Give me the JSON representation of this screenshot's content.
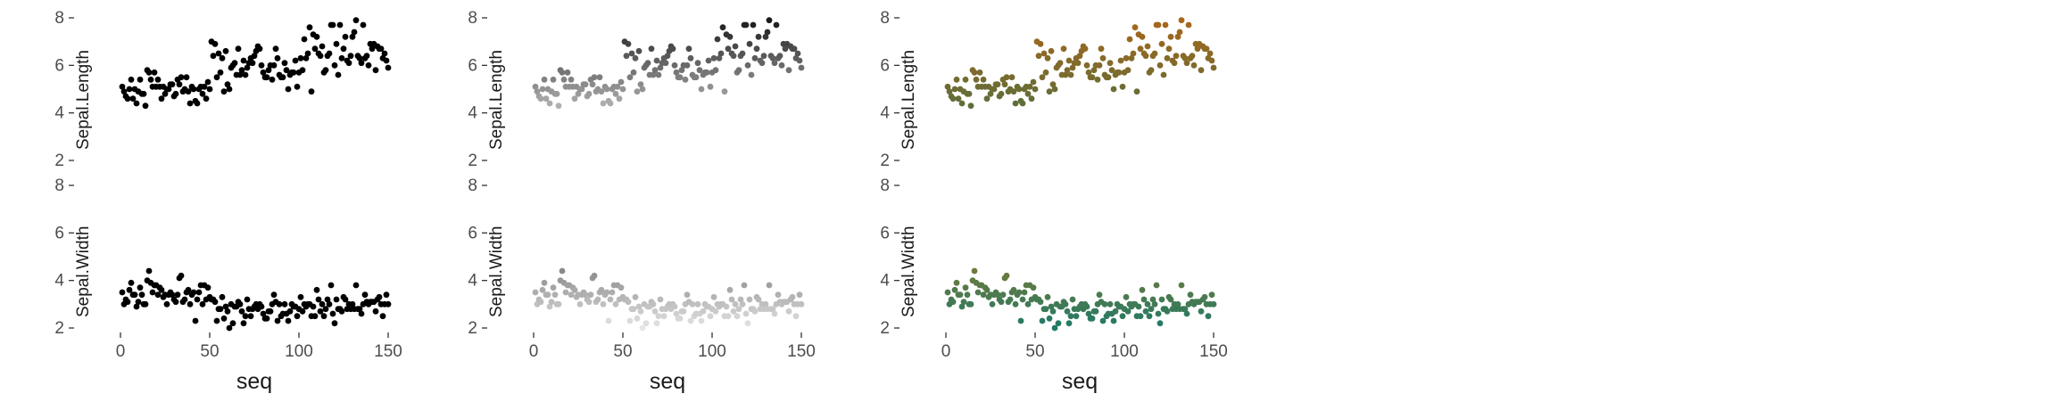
{
  "chart_data": [
    {
      "type": "scatter",
      "panel": "black",
      "xlabel": "seq",
      "xlim": [
        0,
        150
      ],
      "x_ticks": [
        "0",
        "50",
        "100",
        "150"
      ],
      "rows": [
        {
          "ylabel": "Sepal.Length",
          "ylim": [
            2,
            8
          ],
          "y_ticks": [
            "2",
            "4",
            "6",
            "8"
          ],
          "color": "#000000",
          "series": [
            {
              "x": [
                1,
                2,
                3,
                4,
                5,
                6,
                7,
                8,
                9,
                10,
                11,
                12,
                13,
                14,
                15,
                16,
                17,
                18,
                19,
                20,
                21,
                22,
                23,
                24,
                25,
                26,
                27,
                28,
                29,
                30,
                31,
                32,
                33,
                34,
                35,
                36,
                37,
                38,
                39,
                40,
                41,
                42,
                43,
                44,
                45,
                46,
                47,
                48,
                49,
                50,
                51,
                52,
                53,
                54,
                55,
                56,
                57,
                58,
                59,
                60,
                61,
                62,
                63,
                64,
                65,
                66,
                67,
                68,
                69,
                70,
                71,
                72,
                73,
                74,
                75,
                76,
                77,
                78,
                79,
                80,
                81,
                82,
                83,
                84,
                85,
                86,
                87,
                88,
                89,
                90,
                91,
                92,
                93,
                94,
                95,
                96,
                97,
                98,
                99,
                100,
                101,
                102,
                103,
                104,
                105,
                106,
                107,
                108,
                109,
                110,
                111,
                112,
                113,
                114,
                115,
                116,
                117,
                118,
                119,
                120,
                121,
                122,
                123,
                124,
                125,
                126,
                127,
                128,
                129,
                130,
                131,
                132,
                133,
                134,
                135,
                136,
                137,
                138,
                139,
                140,
                141,
                142,
                143,
                144,
                145,
                146,
                147,
                148,
                149,
                150
              ],
              "y": [
                5.1,
                4.9,
                4.7,
                4.6,
                5.0,
                5.4,
                4.6,
                5.0,
                4.4,
                4.9,
                5.4,
                4.8,
                4.8,
                4.3,
                5.8,
                5.7,
                5.4,
                5.1,
                5.7,
                5.1,
                5.4,
                5.1,
                4.6,
                5.1,
                4.8,
                5.0,
                5.0,
                5.2,
                5.2,
                4.7,
                4.8,
                5.4,
                5.2,
                5.5,
                4.9,
                5.0,
                5.5,
                4.9,
                4.4,
                5.1,
                5.0,
                4.5,
                4.4,
                5.0,
                5.1,
                4.8,
                5.1,
                4.6,
                5.3,
                5.0,
                7.0,
                6.4,
                6.9,
                5.5,
                6.5,
                5.7,
                6.3,
                4.9,
                6.6,
                5.2,
                5.0,
                5.9,
                6.0,
                6.1,
                5.6,
                6.7,
                5.6,
                5.8,
                6.2,
                5.6,
                5.9,
                6.1,
                6.3,
                6.1,
                6.4,
                6.6,
                6.8,
                6.7,
                6.0,
                5.7,
                5.5,
                5.5,
                5.8,
                6.0,
                5.4,
                6.0,
                6.7,
                6.3,
                5.6,
                5.5,
                5.5,
                6.1,
                5.8,
                5.0,
                5.6,
                5.7,
                5.7,
                6.2,
                5.1,
                5.7,
                6.3,
                5.8,
                7.1,
                6.3,
                6.5,
                7.6,
                4.9,
                7.3,
                6.7,
                7.2,
                6.5,
                6.4,
                6.8,
                5.7,
                5.8,
                6.4,
                6.5,
                7.7,
                7.7,
                6.0,
                6.9,
                5.6,
                7.7,
                6.3,
                6.7,
                7.2,
                6.2,
                6.1,
                6.4,
                7.2,
                7.4,
                7.9,
                6.4,
                6.3,
                6.1,
                7.7,
                6.3,
                6.4,
                6.0,
                6.9,
                6.7,
                6.9,
                5.8,
                6.8,
                6.7,
                6.7,
                6.3,
                6.5,
                6.2,
                5.9
              ]
            }
          ]
        },
        {
          "ylabel": "Sepal.Width",
          "ylim": [
            2,
            8
          ],
          "y_ticks": [
            "2",
            "4",
            "6",
            "8"
          ],
          "color": "#000000",
          "series": [
            {
              "x": [
                1,
                2,
                3,
                4,
                5,
                6,
                7,
                8,
                9,
                10,
                11,
                12,
                13,
                14,
                15,
                16,
                17,
                18,
                19,
                20,
                21,
                22,
                23,
                24,
                25,
                26,
                27,
                28,
                29,
                30,
                31,
                32,
                33,
                34,
                35,
                36,
                37,
                38,
                39,
                40,
                41,
                42,
                43,
                44,
                45,
                46,
                47,
                48,
                49,
                50,
                51,
                52,
                53,
                54,
                55,
                56,
                57,
                58,
                59,
                60,
                61,
                62,
                63,
                64,
                65,
                66,
                67,
                68,
                69,
                70,
                71,
                72,
                73,
                74,
                75,
                76,
                77,
                78,
                79,
                80,
                81,
                82,
                83,
                84,
                85,
                86,
                87,
                88,
                89,
                90,
                91,
                92,
                93,
                94,
                95,
                96,
                97,
                98,
                99,
                100,
                101,
                102,
                103,
                104,
                105,
                106,
                107,
                108,
                109,
                110,
                111,
                112,
                113,
                114,
                115,
                116,
                117,
                118,
                119,
                120,
                121,
                122,
                123,
                124,
                125,
                126,
                127,
                128,
                129,
                130,
                131,
                132,
                133,
                134,
                135,
                136,
                137,
                138,
                139,
                140,
                141,
                142,
                143,
                144,
                145,
                146,
                147,
                148,
                149,
                150
              ],
              "y": [
                3.5,
                3.0,
                3.2,
                3.1,
                3.6,
                3.9,
                3.4,
                3.4,
                2.9,
                3.1,
                3.7,
                3.4,
                3.0,
                3.0,
                4.0,
                4.4,
                3.9,
                3.5,
                3.8,
                3.8,
                3.4,
                3.7,
                3.6,
                3.3,
                3.4,
                3.0,
                3.4,
                3.5,
                3.4,
                3.2,
                3.1,
                3.4,
                4.1,
                4.2,
                3.1,
                3.2,
                3.5,
                3.6,
                3.0,
                3.4,
                3.5,
                2.3,
                3.2,
                3.5,
                3.8,
                3.0,
                3.8,
                3.2,
                3.7,
                3.3,
                3.2,
                3.2,
                3.1,
                2.3,
                2.8,
                2.8,
                3.3,
                2.4,
                2.9,
                2.7,
                2.0,
                3.0,
                2.2,
                2.9,
                2.9,
                3.1,
                3.0,
                2.7,
                2.2,
                2.5,
                3.2,
                2.8,
                2.5,
                2.8,
                2.9,
                3.0,
                2.8,
                3.0,
                2.9,
                2.6,
                2.4,
                2.4,
                2.7,
                2.7,
                3.0,
                3.4,
                3.1,
                2.3,
                3.0,
                2.5,
                2.6,
                3.0,
                2.6,
                2.3,
                2.7,
                3.0,
                2.9,
                2.9,
                2.5,
                2.8,
                3.3,
                2.7,
                3.0,
                2.9,
                3.0,
                3.0,
                2.5,
                2.9,
                2.5,
                3.6,
                3.2,
                2.7,
                3.0,
                2.5,
                2.8,
                3.2,
                3.0,
                3.8,
                2.6,
                2.2,
                3.2,
                2.8,
                2.8,
                2.7,
                3.3,
                3.2,
                2.8,
                3.0,
                2.8,
                3.0,
                2.8,
                3.8,
                2.8,
                2.8,
                2.6,
                3.0,
                3.4,
                3.1,
                3.0,
                3.1,
                3.1,
                3.1,
                2.7,
                3.2,
                3.3,
                3.0,
                2.5,
                3.0,
                3.4,
                3.0
              ]
            }
          ]
        }
      ]
    },
    {
      "type": "scatter",
      "panel": "gray-gradient",
      "xlabel": "seq",
      "xlim": [
        0,
        150
      ],
      "x_ticks": [
        "0",
        "50",
        "100",
        "150"
      ],
      "rows": [
        {
          "ylabel": "Sepal.Length",
          "ylim": [
            2,
            8
          ],
          "y_ticks": [
            "2",
            "4",
            "6",
            "8"
          ],
          "color_range": [
            "#b0b0b0",
            "#1a1a1a"
          ],
          "color_domain": [
            4.3,
            7.9
          ]
        },
        {
          "ylabel": "Sepal.Width",
          "ylim": [
            2,
            8
          ],
          "y_ticks": [
            "2",
            "4",
            "6",
            "8"
          ],
          "color_range": [
            "#e6e6e6",
            "#8a8a8a"
          ],
          "color_domain": [
            2.0,
            4.4
          ]
        }
      ]
    },
    {
      "type": "scatter",
      "panel": "color-gradient",
      "xlabel": "seq",
      "xlim": [
        0,
        150
      ],
      "x_ticks": [
        "0",
        "50",
        "100",
        "150"
      ],
      "rows": [
        {
          "ylabel": "Sepal.Length",
          "ylim": [
            2,
            8
          ],
          "y_ticks": [
            "2",
            "4",
            "6",
            "8"
          ],
          "color_range": [
            "#5e6e3a",
            "#a8661a"
          ],
          "color_domain": [
            4.3,
            7.9
          ]
        },
        {
          "ylabel": "Sepal.Width",
          "ylim": [
            2,
            8
          ],
          "y_ticks": [
            "2",
            "4",
            "6",
            "8"
          ],
          "color_range": [
            "#1f7a68",
            "#6e7a3c"
          ],
          "color_domain": [
            2.0,
            4.4
          ]
        }
      ]
    }
  ]
}
